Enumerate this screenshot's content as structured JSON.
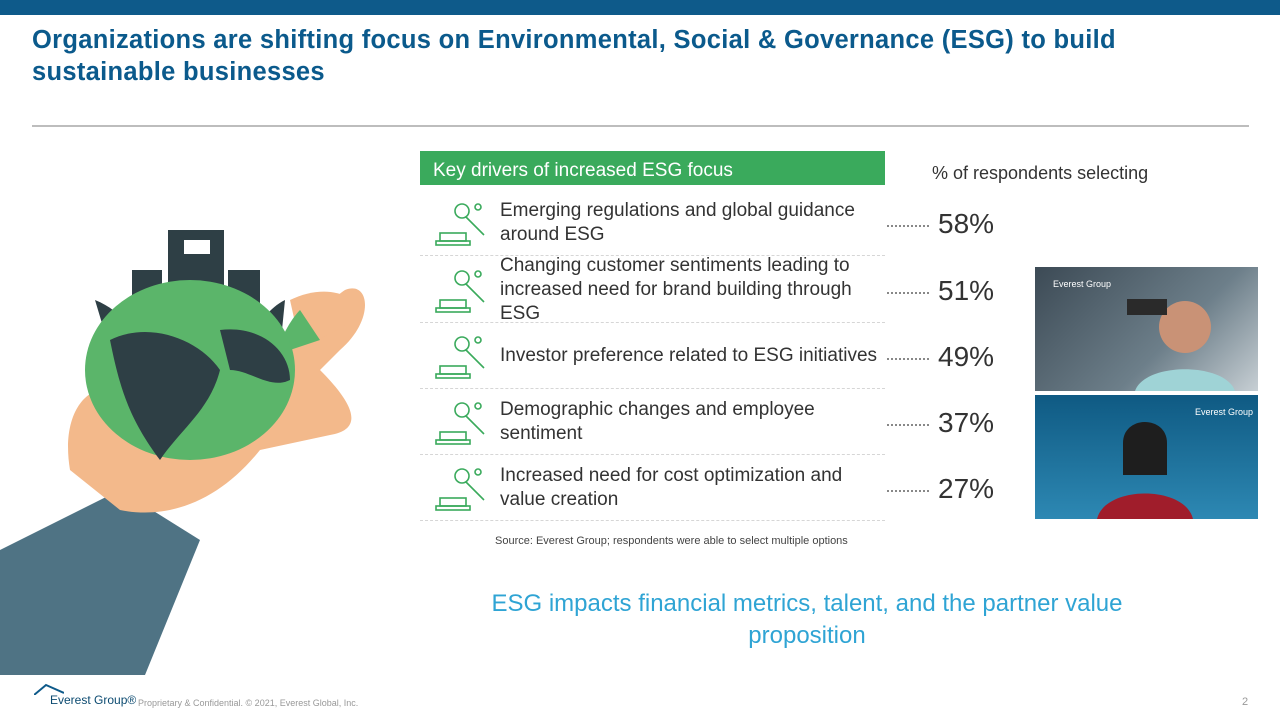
{
  "header": {
    "title": "Organizations are shifting focus on Environmental, Social & Governance (ESG) to build sustainable businesses"
  },
  "table": {
    "heading": "Key drivers of increased ESG focus",
    "column_heading": "% of respondents selecting",
    "rows": [
      {
        "label": "Emerging regulations and global guidance around ESG",
        "value": "58%"
      },
      {
        "label": "Changing customer sentiments leading to increased need for brand building through ESG",
        "value": "51%"
      },
      {
        "label": "Investor preference related to ESG initiatives",
        "value": "49%"
      },
      {
        "label": "Demographic changes and employee sentiment",
        "value": "37%"
      },
      {
        "label": "Increased need for cost optimization and value creation",
        "value": "27%"
      }
    ],
    "source": "Source: Everest Group; respondents were able to select multiple options"
  },
  "tagline": "ESG impacts financial metrics, talent, and the partner value proposition",
  "videos": [
    {
      "logo": "Everest Group"
    },
    {
      "logo": "Everest Group"
    }
  ],
  "footer": {
    "logo": "Everest Group®",
    "legal": "Proprietary & Confidential. © 2021, Everest Global, Inc.",
    "page": "2"
  }
}
